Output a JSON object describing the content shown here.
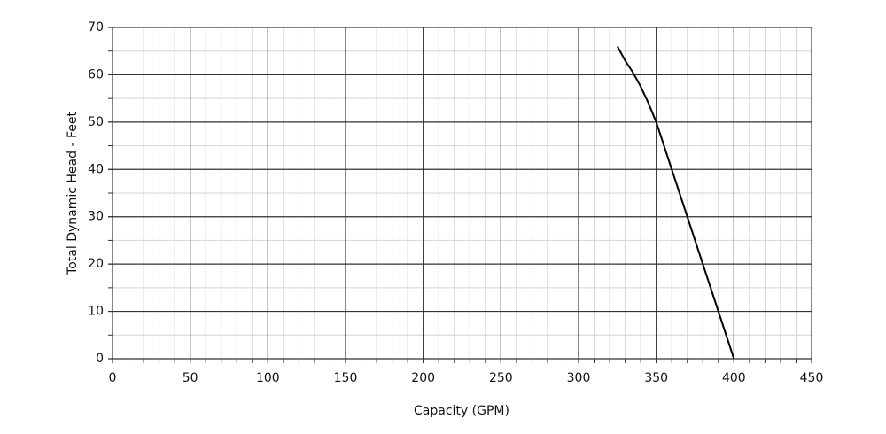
{
  "chart_data": {
    "type": "line",
    "x_label": "Capacity (GPM)",
    "y_label": "Total Dynamic Head  -  Feet",
    "x": [
      325,
      330,
      335,
      340,
      345,
      350,
      360,
      370,
      380,
      390,
      400
    ],
    "series": [
      {
        "color": "#000000",
        "values": [
          66,
          63,
          60.5,
          57.5,
          54,
          50,
          40,
          30,
          20,
          10,
          0
        ]
      }
    ],
    "xlim": [
      0,
      450
    ],
    "xticks": [
      0,
      50,
      100,
      150,
      200,
      250,
      300,
      350,
      400,
      450
    ],
    "ylim": [
      0,
      70
    ],
    "yticks": [
      0,
      10,
      20,
      30,
      40,
      50,
      60,
      70
    ],
    "grid": true,
    "minor_xstep": 10,
    "minor_ystep": 5
  }
}
